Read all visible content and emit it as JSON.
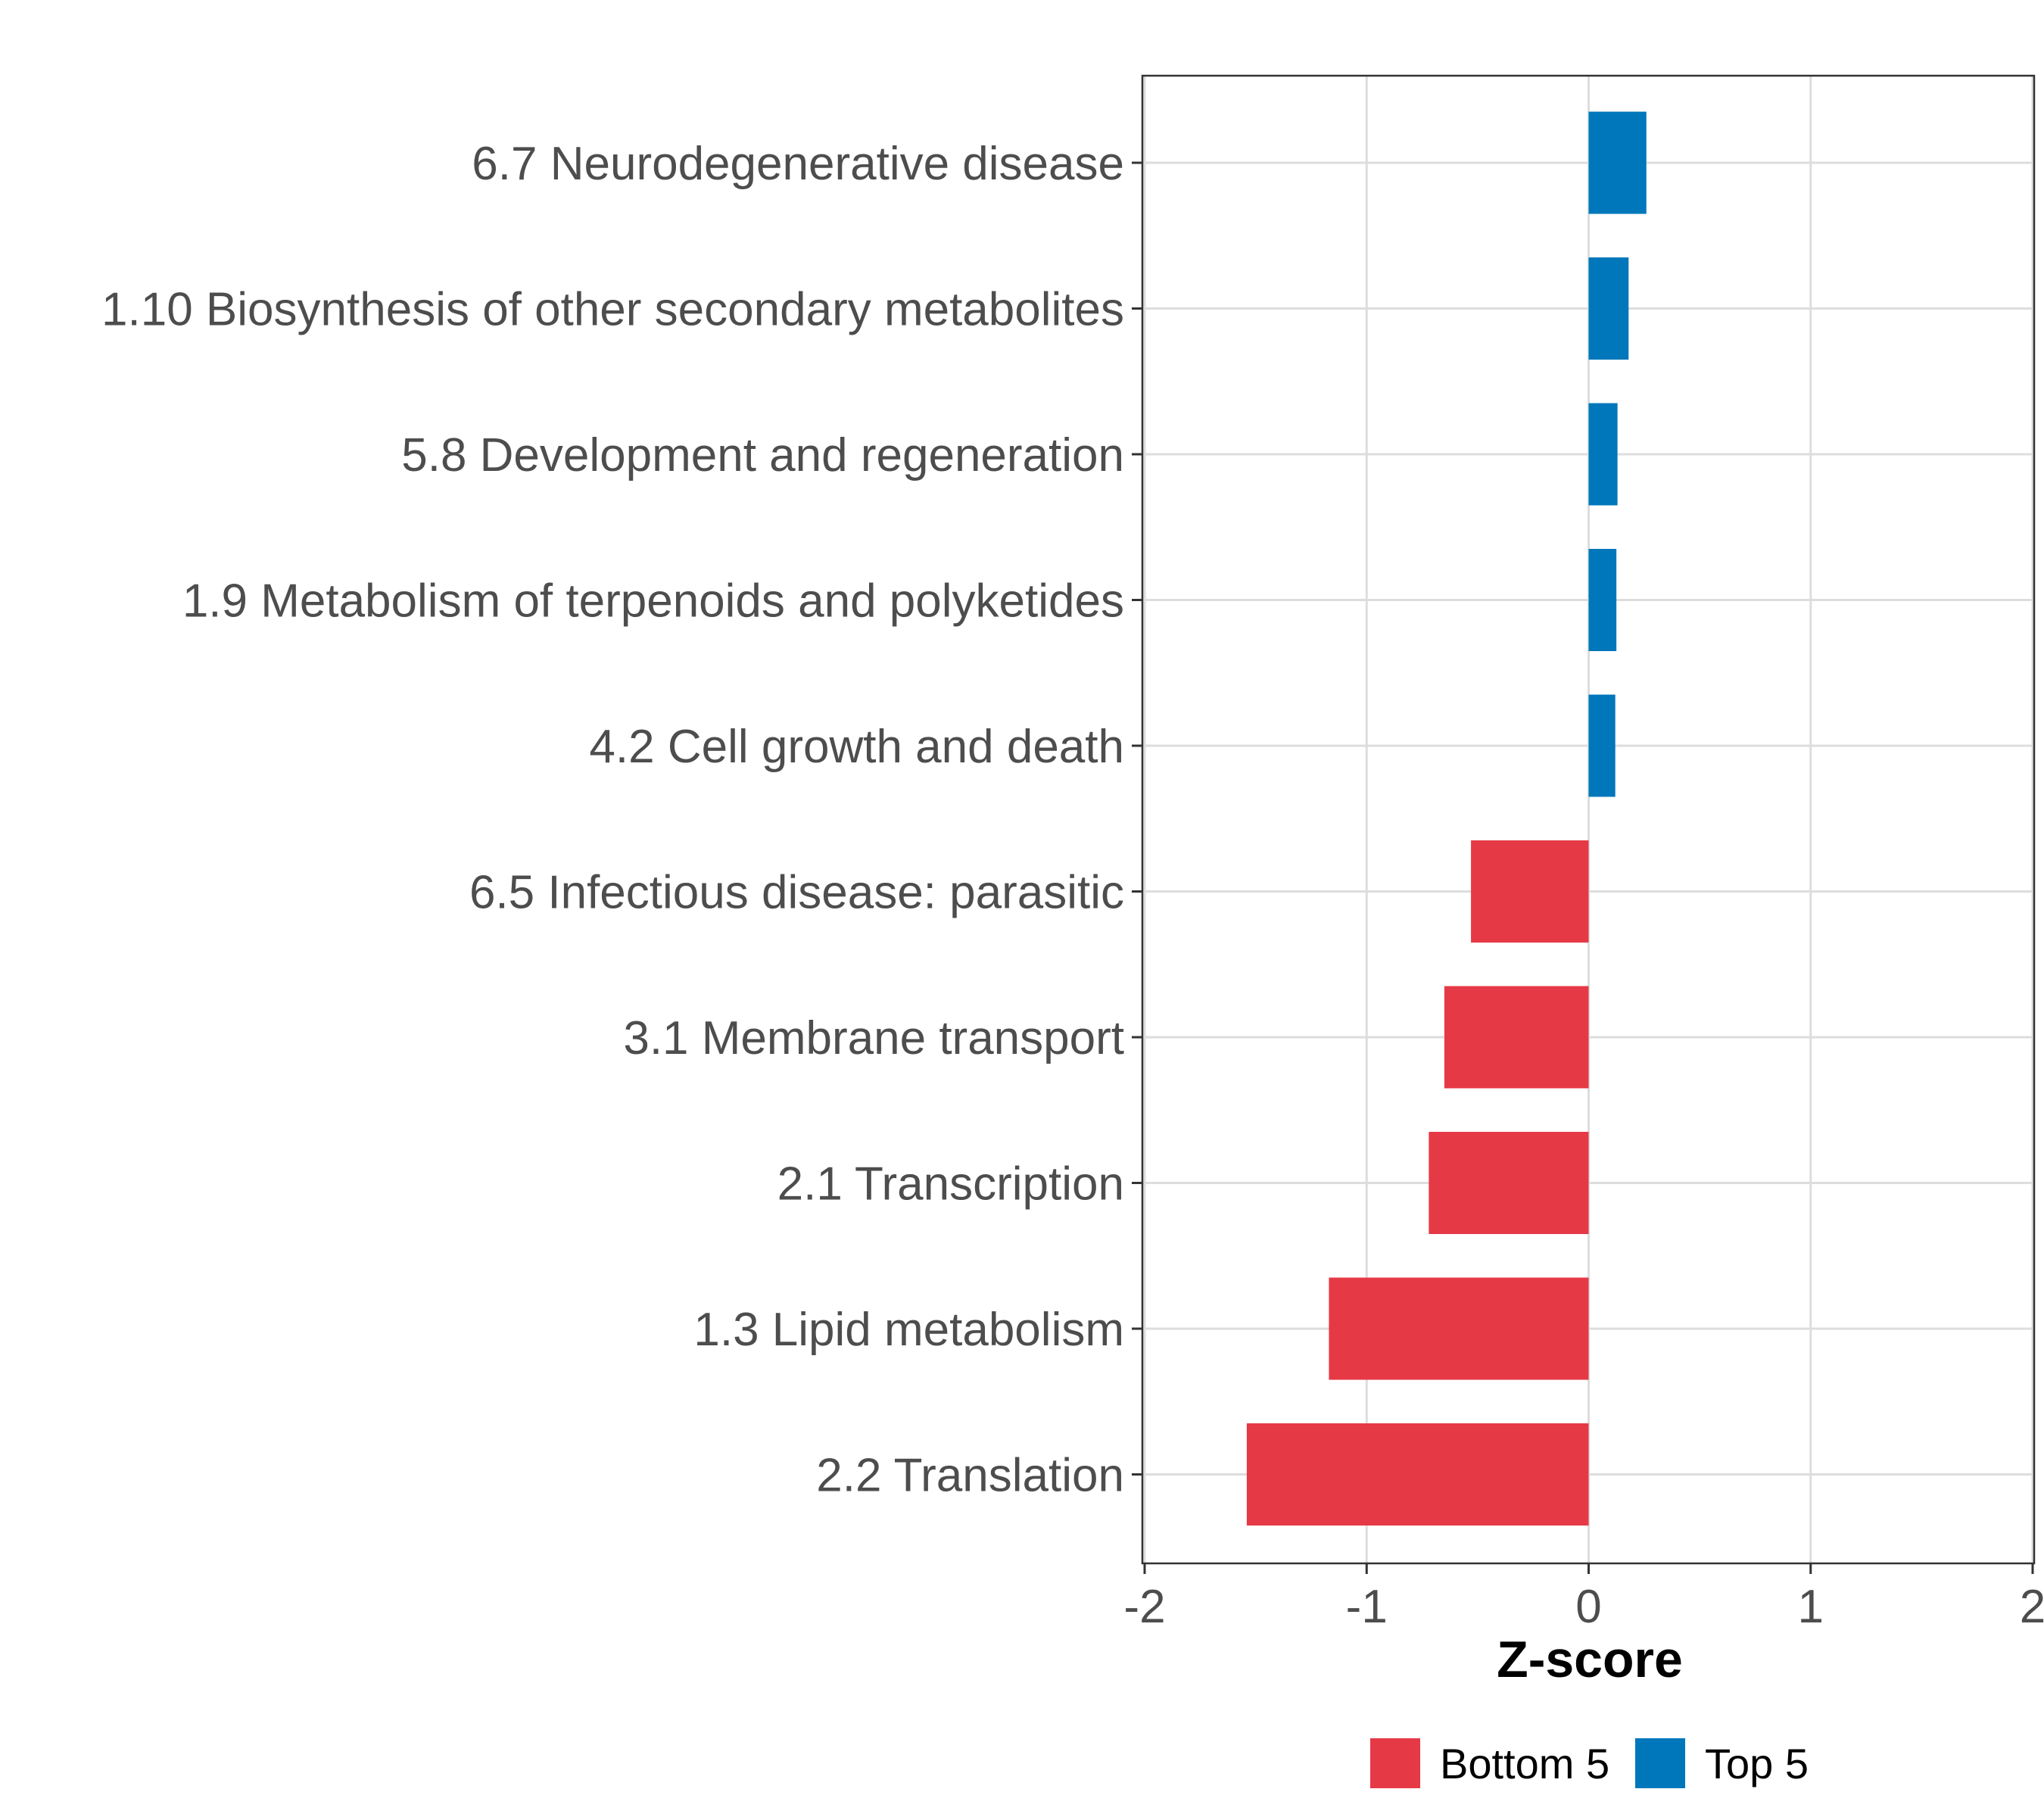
{
  "chart_data": {
    "type": "bar",
    "orientation": "horizontal",
    "title": "",
    "xlabel": "Z-score",
    "ylabel": "",
    "xlim": [
      -2,
      2
    ],
    "xticks": [
      -2,
      -1,
      0,
      1,
      2
    ],
    "xtick_labels": [
      "-2",
      "-1",
      "0",
      "1",
      "2"
    ],
    "grid": true,
    "legend_position": "bottom",
    "categories": [
      "6.7 Neurodegenerative disease",
      "1.10 Biosynthesis of other secondary metabolites",
      "5.8 Development and regeneration",
      "1.9 Metabolism of terpenoids and polyketides",
      "4.2 Cell growth and death",
      "6.5 Infectious disease: parasitic",
      "3.1 Membrane transport",
      "2.1 Transcription",
      "1.3 Lipid metabolism",
      "2.2 Translation"
    ],
    "values": [
      0.26,
      0.18,
      0.13,
      0.125,
      0.12,
      -0.53,
      -0.65,
      -0.72,
      -1.17,
      -1.54
    ],
    "groups": [
      "Top 5",
      "Top 5",
      "Top 5",
      "Top 5",
      "Top 5",
      "Bottom 5",
      "Bottom 5",
      "Bottom 5",
      "Bottom 5",
      "Bottom 5"
    ],
    "legend": [
      {
        "name": "Bottom 5",
        "color": "#e63946"
      },
      {
        "name": "Top 5",
        "color": "#0077bb"
      }
    ]
  }
}
